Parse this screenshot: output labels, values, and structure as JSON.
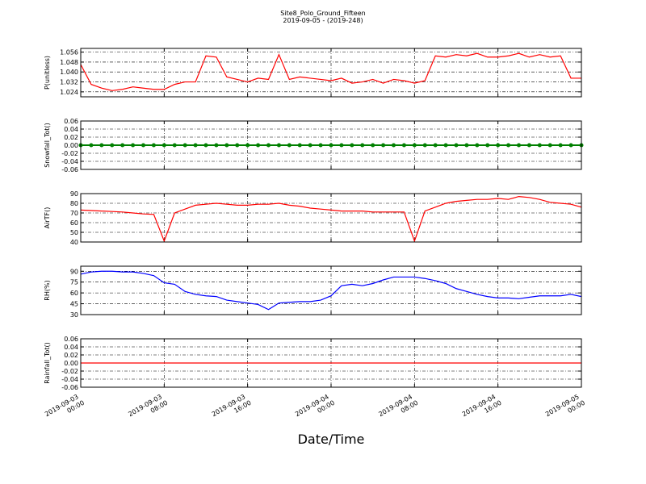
{
  "title": "Site8_Polo_Ground_Fifteen",
  "subtitle": "2019-09-05 - (2019-248)",
  "xlabel": "Date/Time",
  "x": [
    "2019-09-03 00:00",
    "2019-09-03 01:00",
    "2019-09-03 02:00",
    "2019-09-03 03:00",
    "2019-09-03 04:00",
    "2019-09-03 05:00",
    "2019-09-03 06:00",
    "2019-09-03 07:00",
    "2019-09-03 08:00",
    "2019-09-03 09:00",
    "2019-09-03 10:00",
    "2019-09-03 11:00",
    "2019-09-03 12:00",
    "2019-09-03 13:00",
    "2019-09-03 14:00",
    "2019-09-03 15:00",
    "2019-09-03 16:00",
    "2019-09-03 17:00",
    "2019-09-03 18:00",
    "2019-09-03 19:00",
    "2019-09-03 20:00",
    "2019-09-03 21:00",
    "2019-09-03 22:00",
    "2019-09-03 23:00",
    "2019-09-04 00:00",
    "2019-09-04 01:00",
    "2019-09-04 02:00",
    "2019-09-04 03:00",
    "2019-09-04 04:00",
    "2019-09-04 05:00",
    "2019-09-04 06:00",
    "2019-09-04 07:00",
    "2019-09-04 08:00",
    "2019-09-04 09:00",
    "2019-09-04 10:00",
    "2019-09-04 11:00",
    "2019-09-04 12:00",
    "2019-09-04 13:00",
    "2019-09-04 14:00",
    "2019-09-04 15:00",
    "2019-09-04 16:00",
    "2019-09-04 17:00",
    "2019-09-04 18:00",
    "2019-09-04 19:00",
    "2019-09-04 20:00",
    "2019-09-04 21:00",
    "2019-09-04 22:00",
    "2019-09-04 23:00",
    "2019-09-05 00:00"
  ],
  "xlim": [
    "2019-09-03 00:00",
    "2019-09-05 00:00"
  ],
  "xticks": [
    "2019-09-03 00:00",
    "2019-09-03 08:00",
    "2019-09-03 16:00",
    "2019-09-04 00:00",
    "2019-09-04 08:00",
    "2019-09-04 16:00",
    "2019-09-05 00:00"
  ],
  "grid": true,
  "chart_data": [
    {
      "type": "line",
      "ylabel": "P(unitless)",
      "ylim": [
        1.02,
        1.059
      ],
      "yticks": [
        {
          "value": 1.024,
          "label": "1.024"
        },
        {
          "value": 1.032,
          "label": "1.032"
        },
        {
          "value": 1.04,
          "label": "1.040"
        },
        {
          "value": 1.048,
          "label": "1.048"
        },
        1.056
      ],
      "series": [
        {
          "color": "#ff0000",
          "markers": false,
          "values": [
            1.046,
            1.03,
            1.027,
            1.025,
            1.026,
            1.028,
            1.027,
            1.026,
            1.026,
            1.03,
            1.032,
            1.032,
            1.053,
            1.052,
            1.036,
            1.034,
            1.032,
            1.035,
            1.034,
            1.054,
            1.034,
            1.036,
            1.035,
            1.034,
            1.033,
            1.035,
            1.031,
            1.032,
            1.034,
            1.031,
            1.034,
            1.033,
            1.031,
            1.033,
            1.053,
            1.052,
            1.054,
            1.053,
            1.055,
            1.052,
            1.052,
            1.053,
            1.055,
            1.052,
            1.054,
            1.052,
            1.053,
            1.035,
            1.035
          ]
        }
      ]
    },
    {
      "type": "line",
      "ylabel": "Snowfall_Tot()",
      "ylim": [
        -0.06,
        0.06
      ],
      "yticks": [
        -0.06,
        -0.04,
        -0.02,
        {
          "value": 0,
          "label": "0.00"
        },
        0.02,
        0.04,
        0.06
      ],
      "series": [
        {
          "color": "#008000",
          "markers": true,
          "values": [
            0,
            0,
            0,
            0,
            0,
            0,
            0,
            0,
            0,
            0,
            0,
            0,
            0,
            0,
            0,
            0,
            0,
            0,
            0,
            0,
            0,
            0,
            0,
            0,
            0,
            0,
            0,
            0,
            0,
            0,
            0,
            0,
            0,
            0,
            0,
            0,
            0,
            0,
            0,
            0,
            0,
            0,
            0,
            0,
            0,
            0,
            0,
            0,
            0
          ]
        }
      ]
    },
    {
      "type": "line",
      "ylabel": "AirTF()",
      "ylim": [
        40,
        90
      ],
      "yticks": [
        40,
        50,
        60,
        70,
        80,
        90
      ],
      "series": [
        {
          "color": "#ff0000",
          "markers": false,
          "values": [
            73,
            72.5,
            72,
            71.5,
            71,
            70,
            69,
            68.5,
            41,
            70,
            74,
            78,
            79,
            80,
            79,
            78,
            78,
            79,
            79,
            80,
            78,
            77,
            75,
            74,
            73,
            72,
            72,
            72,
            71,
            71,
            71,
            71,
            41,
            72,
            76,
            80,
            82,
            83,
            84,
            84,
            85,
            84,
            87,
            86,
            84,
            81,
            80,
            79,
            76
          ]
        }
      ]
    },
    {
      "type": "line",
      "ylabel": "RH(%)",
      "ylim": [
        30,
        97
      ],
      "yticks": [
        30,
        45,
        60,
        75,
        90
      ],
      "series": [
        {
          "color": "#0000ff",
          "markers": false,
          "values": [
            86,
            89,
            90,
            90,
            89,
            89,
            87,
            84,
            74,
            72,
            62,
            58,
            56,
            55,
            50,
            48,
            46,
            44,
            37,
            46,
            47,
            48,
            48,
            50,
            56,
            70,
            72,
            70,
            73,
            78,
            82,
            82,
            82,
            80,
            77,
            73,
            66,
            62,
            58,
            55,
            53,
            53,
            52,
            54,
            56,
            56,
            56,
            58,
            55
          ]
        }
      ]
    },
    {
      "type": "line",
      "ylabel": "Rainfall_Tot()",
      "ylim": [
        -0.06,
        0.06
      ],
      "yticks": [
        -0.06,
        -0.04,
        -0.02,
        {
          "value": 0,
          "label": "0.00"
        },
        0.02,
        0.04,
        0.06
      ],
      "series": [
        {
          "color": "#ff0000",
          "markers": false,
          "values": [
            0,
            0,
            0,
            0,
            0,
            0,
            0,
            0,
            0,
            0,
            0,
            0,
            0,
            0,
            0,
            0,
            0,
            0,
            0,
            0,
            0,
            0,
            0,
            0,
            0,
            0,
            0,
            0,
            0,
            0,
            0,
            0,
            0,
            0,
            0,
            0,
            0,
            0,
            0,
            0,
            0,
            0,
            0,
            0,
            0,
            0,
            0,
            0,
            0
          ]
        }
      ]
    }
  ]
}
